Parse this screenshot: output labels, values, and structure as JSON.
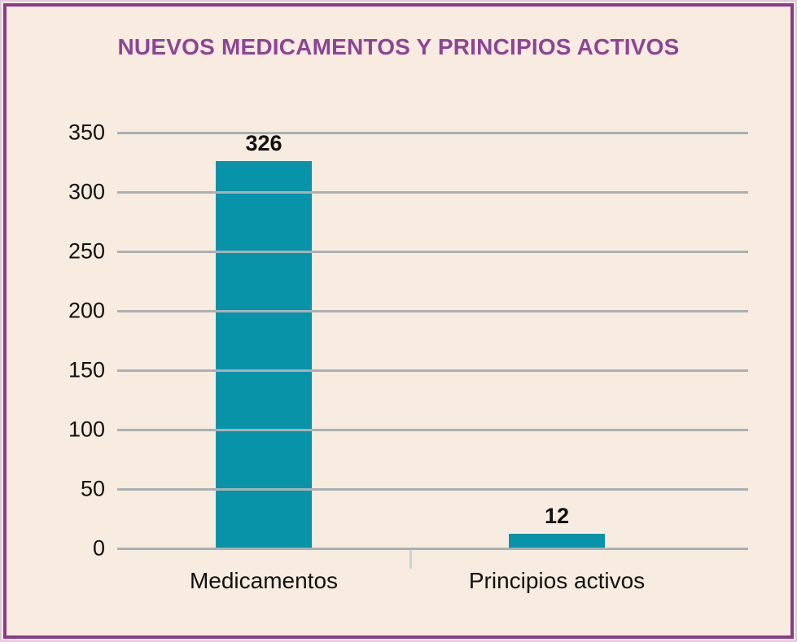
{
  "chart_data": {
    "type": "bar",
    "title": "NUEVOS MEDICAMENTOS Y PRINCIPIOS ACTIVOS",
    "categories": [
      "Medicamentos",
      "Principios activos"
    ],
    "values": [
      326,
      12
    ],
    "value_labels": [
      "326",
      "12"
    ],
    "xlabel": "",
    "ylabel": "",
    "ylim": [
      0,
      350
    ],
    "ytick_step": 50,
    "yticks": [
      0,
      50,
      100,
      150,
      200,
      250,
      300,
      350
    ],
    "grid": "horizontal",
    "gridlines_over_bars": true,
    "legend": "none",
    "colors": {
      "bar": "#0893a8",
      "title": "#8e4495",
      "frame_border": "#8c3a8c",
      "frame_border_outer": "#e2c9df",
      "background": "#f7ecdf",
      "gridline": "#a9b1b5",
      "label_text": "#111111",
      "separator_tick": "#c7d5d9"
    }
  }
}
